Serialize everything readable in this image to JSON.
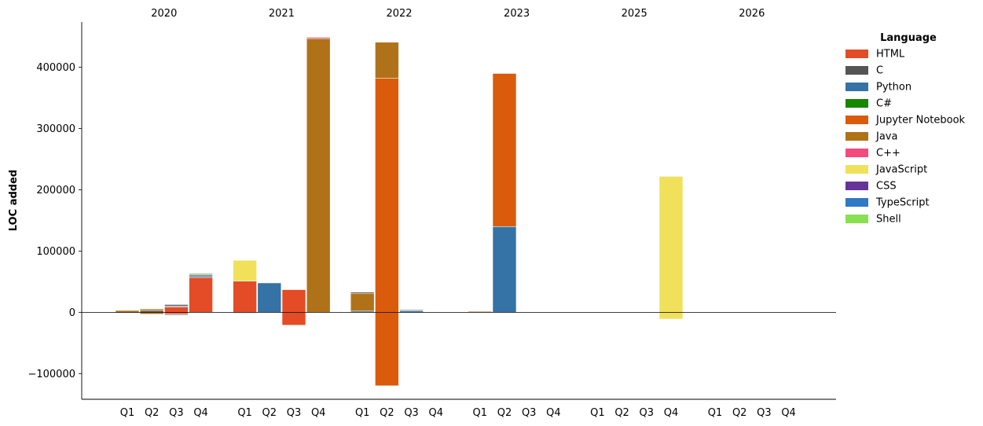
{
  "chart_data": {
    "type": "bar",
    "stacked": true,
    "ylabel": "LOC added",
    "xlabel": "",
    "ylim": [
      -142000,
      474000
    ],
    "yticks": [
      -100000,
      0,
      100000,
      200000,
      300000,
      400000
    ],
    "ytick_labels": [
      "−100000",
      "0",
      "100000",
      "200000",
      "300000",
      "400000"
    ],
    "years": [
      "2020",
      "2021",
      "2022",
      "2023",
      "2025",
      "2026"
    ],
    "quarters": [
      "Q1",
      "Q2",
      "Q3",
      "Q4"
    ],
    "legend": {
      "title": "Language",
      "placement": "upper right, outside plot",
      "entries": [
        {
          "name": "HTML",
          "color": "#e34c26"
        },
        {
          "name": "C",
          "color": "#555555"
        },
        {
          "name": "Python",
          "color": "#3572a5"
        },
        {
          "name": "C#",
          "color": "#178600"
        },
        {
          "name": "Jupyter Notebook",
          "color": "#da5b0b"
        },
        {
          "name": "Java",
          "color": "#b07219"
        },
        {
          "name": "C++",
          "color": "#f34b7d"
        },
        {
          "name": "JavaScript",
          "color": "#f1e05a"
        },
        {
          "name": "CSS",
          "color": "#663399"
        },
        {
          "name": "TypeScript",
          "color": "#3178c6"
        },
        {
          "name": "Shell",
          "color": "#89e051"
        }
      ]
    },
    "stacks": [
      {
        "year": "2020",
        "quarter": "Q1",
        "segments": [
          {
            "lang": "Java",
            "value": 3000
          },
          {
            "lang": "C",
            "value": -1000
          }
        ]
      },
      {
        "year": "2020",
        "quarter": "Q2",
        "segments": [
          {
            "lang": "C",
            "value": 3000
          },
          {
            "lang": "Java",
            "value": 2500
          },
          {
            "lang": "Java",
            "value": -3000
          }
        ]
      },
      {
        "year": "2020",
        "quarter": "Q3",
        "segments": [
          {
            "lang": "HTML",
            "value": 9000
          },
          {
            "lang": "Python",
            "value": 1500
          },
          {
            "lang": "C",
            "value": 2500
          },
          {
            "lang": "C#",
            "value": 500
          },
          {
            "lang": "HTML",
            "value": -3000
          },
          {
            "lang": "C",
            "value": -1500
          }
        ]
      },
      {
        "year": "2020",
        "quarter": "Q4",
        "segments": [
          {
            "lang": "HTML",
            "value": 57000
          },
          {
            "lang": "Python",
            "value": 2500
          },
          {
            "lang": "C",
            "value": 2000
          },
          {
            "lang": "C#",
            "value": 1500
          }
        ]
      },
      {
        "year": "2021",
        "quarter": "Q1",
        "segments": [
          {
            "lang": "HTML",
            "value": 51000
          },
          {
            "lang": "JavaScript",
            "value": 34000
          },
          {
            "lang": "HTML",
            "value": -1000
          },
          {
            "lang": "C",
            "value": -1000
          }
        ]
      },
      {
        "year": "2021",
        "quarter": "Q2",
        "segments": [
          {
            "lang": "Python",
            "value": 48000
          }
        ]
      },
      {
        "year": "2021",
        "quarter": "Q3",
        "segments": [
          {
            "lang": "HTML",
            "value": 37000
          },
          {
            "lang": "HTML",
            "value": -21000
          }
        ]
      },
      {
        "year": "2021",
        "quarter": "Q4",
        "segments": [
          {
            "lang": "Java",
            "value": 447000
          },
          {
            "lang": "C++",
            "value": 2000
          },
          {
            "lang": "HTML",
            "value": 1000
          }
        ]
      },
      {
        "year": "2022",
        "quarter": "Q1",
        "segments": [
          {
            "lang": "Python",
            "value": 2000
          },
          {
            "lang": "Java",
            "value": 29000
          },
          {
            "lang": "C",
            "value": 2000
          }
        ]
      },
      {
        "year": "2022",
        "quarter": "Q2",
        "segments": [
          {
            "lang": "Jupyter Notebook",
            "value": 382000
          },
          {
            "lang": "Java",
            "value": 59000
          },
          {
            "lang": "Jupyter Notebook",
            "value": -120000
          }
        ]
      },
      {
        "year": "2022",
        "quarter": "Q3",
        "segments": [
          {
            "lang": "Python",
            "value": 2500
          },
          {
            "lang": "C",
            "value": 1500
          }
        ]
      },
      {
        "year": "2022",
        "quarter": "Q4",
        "segments": []
      },
      {
        "year": "2023",
        "quarter": "Q1",
        "segments": [
          {
            "lang": "Java",
            "value": 1500
          }
        ]
      },
      {
        "year": "2023",
        "quarter": "Q2",
        "segments": [
          {
            "lang": "Python",
            "value": 140000
          },
          {
            "lang": "Jupyter Notebook",
            "value": 250000
          }
        ]
      },
      {
        "year": "2023",
        "quarter": "Q3",
        "segments": []
      },
      {
        "year": "2023",
        "quarter": "Q4",
        "segments": []
      },
      {
        "year": "2025",
        "quarter": "Q1",
        "segments": []
      },
      {
        "year": "2025",
        "quarter": "Q2",
        "segments": []
      },
      {
        "year": "2025",
        "quarter": "Q3",
        "segments": []
      },
      {
        "year": "2025",
        "quarter": "Q4",
        "segments": [
          {
            "lang": "JavaScript",
            "value": 222000
          },
          {
            "lang": "Python",
            "value": 1000
          },
          {
            "lang": "C#",
            "value": 500
          },
          {
            "lang": "JavaScript",
            "value": -11000
          }
        ]
      },
      {
        "year": "2026",
        "quarter": "Q1",
        "segments": []
      },
      {
        "year": "2026",
        "quarter": "Q2",
        "segments": []
      },
      {
        "year": "2026",
        "quarter": "Q3",
        "segments": []
      },
      {
        "year": "2026",
        "quarter": "Q4",
        "segments": []
      }
    ]
  }
}
